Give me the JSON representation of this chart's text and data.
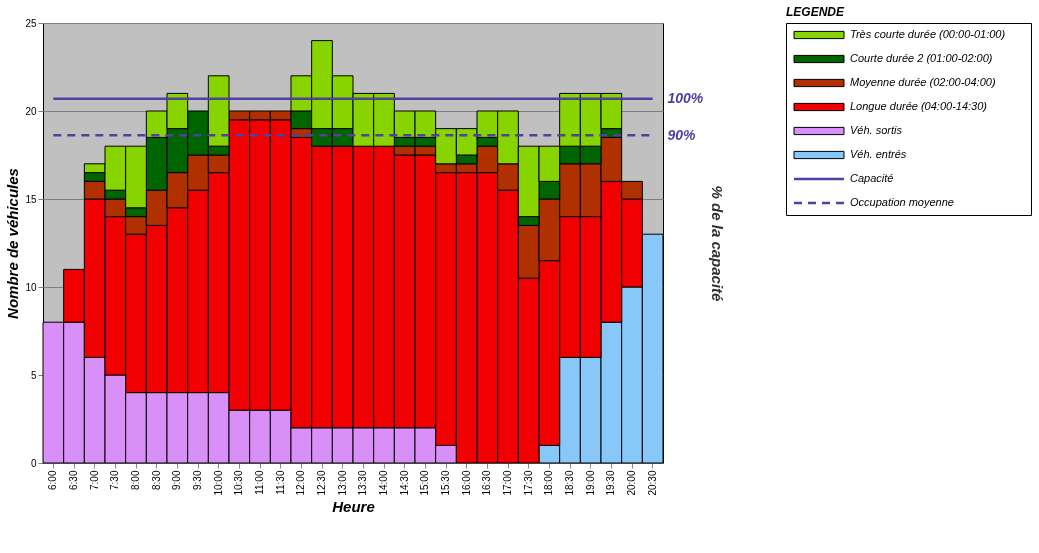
{
  "chart_data": {
    "type": "bar",
    "stacked": true,
    "xlabel": "Heure",
    "ylabel": "Nombre de véhicules",
    "y2label": "% de la capacité",
    "legend_title": "LEGENDE",
    "categories": [
      "6:00",
      "6:30",
      "7:00",
      "7:30",
      "8:00",
      "8:30",
      "9:00",
      "9:30",
      "10:00",
      "10:30",
      "11:00",
      "11:30",
      "12:00",
      "12:30",
      "13:00",
      "13:30",
      "14:00",
      "14:30",
      "15:00",
      "15:30",
      "16:00",
      "16:30",
      "17:00",
      "17:30",
      "18:00",
      "18:30",
      "19:00",
      "19:30",
      "20:00",
      "20:30"
    ],
    "series": [
      {
        "name": "Véh. entrés",
        "color": "#88c8f8",
        "values": [
          null,
          null,
          null,
          null,
          null,
          null,
          null,
          null,
          null,
          null,
          null,
          null,
          null,
          null,
          null,
          null,
          null,
          null,
          null,
          null,
          null,
          null,
          null,
          null,
          1,
          6,
          6,
          8,
          10,
          13
        ]
      },
      {
        "name": "Véh. sortis",
        "color": "#d890f8",
        "values": [
          8,
          8,
          6,
          5,
          4,
          4,
          4,
          4,
          4,
          3,
          3,
          3,
          2,
          2,
          2,
          2,
          2,
          2,
          2,
          1,
          null,
          null,
          null,
          null,
          null,
          null,
          null,
          null,
          null,
          null
        ]
      },
      {
        "name": "Longue durée (04:00-14:30)",
        "color": "#f00000",
        "values": [
          null,
          3,
          9,
          9,
          9,
          9.5,
          10.5,
          11.5,
          12.5,
          16.5,
          16.5,
          16.5,
          16.5,
          16,
          16,
          16,
          16,
          15.5,
          15.5,
          15.5,
          16.5,
          16.5,
          15.5,
          10.5,
          10.5,
          8,
          8,
          8,
          5,
          null
        ]
      },
      {
        "name": "Moyenne durée (02:00-04:00)",
        "color": "#b03000",
        "values": [
          null,
          null,
          1,
          1,
          1,
          2,
          2,
          2,
          1,
          0.5,
          0.5,
          0.5,
          0.5,
          null,
          null,
          null,
          null,
          0.5,
          0.5,
          0.5,
          0.5,
          1.5,
          1.5,
          3,
          3.5,
          3,
          3,
          2.5,
          1,
          null
        ]
      },
      {
        "name": "Courte durée 2 (01:00-02:00)",
        "color": "#006400",
        "values": [
          null,
          null,
          0.5,
          0.5,
          0.5,
          3,
          2.5,
          2.5,
          0.5,
          null,
          null,
          null,
          1,
          1,
          1,
          null,
          null,
          0.5,
          0.5,
          null,
          0.5,
          0.5,
          null,
          0.5,
          1,
          1,
          1,
          0.5,
          null,
          null
        ]
      },
      {
        "name": "Très courte durée (00:00-01:00)",
        "color": "#88d400",
        "values": [
          null,
          null,
          0.5,
          2.5,
          3.5,
          1.5,
          2,
          null,
          4,
          null,
          null,
          null,
          2,
          5,
          3,
          3,
          3,
          1.5,
          1.5,
          2,
          1.5,
          1.5,
          3,
          4,
          2,
          3,
          3,
          2,
          null,
          null
        ]
      },
      {
        "name": "Capacité",
        "type": "line",
        "axis": "y2",
        "line_style": "solid",
        "color": "#5040a0",
        "values": [
          100,
          100,
          100,
          100,
          100,
          100,
          100,
          100,
          100,
          100,
          100,
          100,
          100,
          100,
          100,
          100,
          100,
          100,
          100,
          100,
          100,
          100,
          100,
          100,
          100,
          100,
          100,
          100,
          100,
          100
        ]
      },
      {
        "name": "Occupation moyenne",
        "type": "line",
        "axis": "y2",
        "line_style": "dashed",
        "color": "#5040a0",
        "values": [
          90,
          90,
          90,
          90,
          90,
          90,
          90,
          90,
          90,
          90,
          90,
          90,
          90,
          90,
          90,
          90,
          90,
          90,
          90,
          90,
          90,
          90,
          90,
          90,
          90,
          90,
          90,
          90,
          90,
          90
        ]
      }
    ],
    "ylim": [
      0,
      25
    ],
    "y2lim": [
      0,
      120.8
    ],
    "y2ticks": [
      {
        "value": 100,
        "label": "100%"
      },
      {
        "value": 90,
        "label": "90%"
      }
    ],
    "yticks": [
      0,
      5,
      10,
      15,
      20,
      25
    ],
    "grid": "y",
    "legend": "right"
  }
}
